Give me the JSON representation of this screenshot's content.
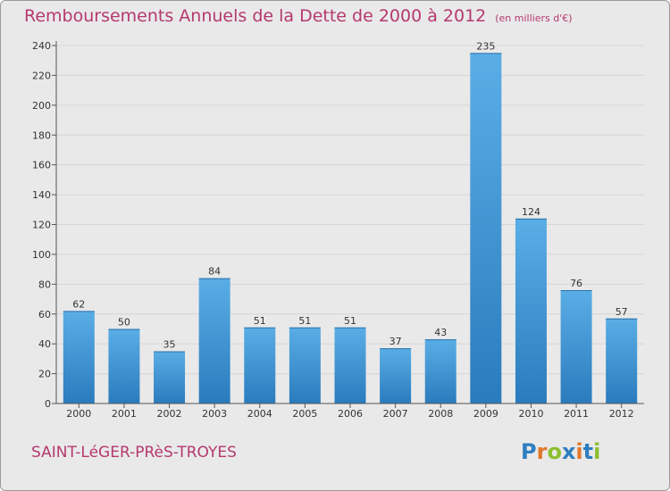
{
  "header": {
    "title": "Remboursements Annuels de la Dette de 2000 à 2012",
    "subtitle": "(en milliers d'€)"
  },
  "footer": {
    "town": "SAINT-LéGER-PRèS-TROYES",
    "logo_letters": [
      "P",
      "r",
      "o",
      "x",
      "i",
      "t",
      "i"
    ],
    "logo_colors": [
      "#2f7ec0",
      "#e0782a",
      "#8cbf2f",
      "#2f7ec0",
      "#e0782a",
      "#2f7ec0",
      "#8cbf2f"
    ]
  },
  "colors": {
    "bar_top": "#5aaee6",
    "bar_bottom": "#2a7bbd",
    "accent": "#b5396e"
  },
  "chart_data": {
    "type": "bar",
    "title": "Remboursements Annuels de la Dette de 2000 à 2012",
    "subtitle": "(en milliers d'€)",
    "categories": [
      "2000",
      "2001",
      "2002",
      "2003",
      "2004",
      "2005",
      "2006",
      "2007",
      "2008",
      "2009",
      "2010",
      "2011",
      "2012"
    ],
    "values": [
      62,
      50,
      35,
      84,
      51,
      51,
      51,
      37,
      43,
      235,
      124,
      76,
      57
    ],
    "ylim": [
      0,
      240
    ],
    "yticks": [
      0,
      20,
      40,
      60,
      80,
      100,
      120,
      140,
      160,
      180,
      200,
      220,
      240
    ],
    "grid": true
  }
}
